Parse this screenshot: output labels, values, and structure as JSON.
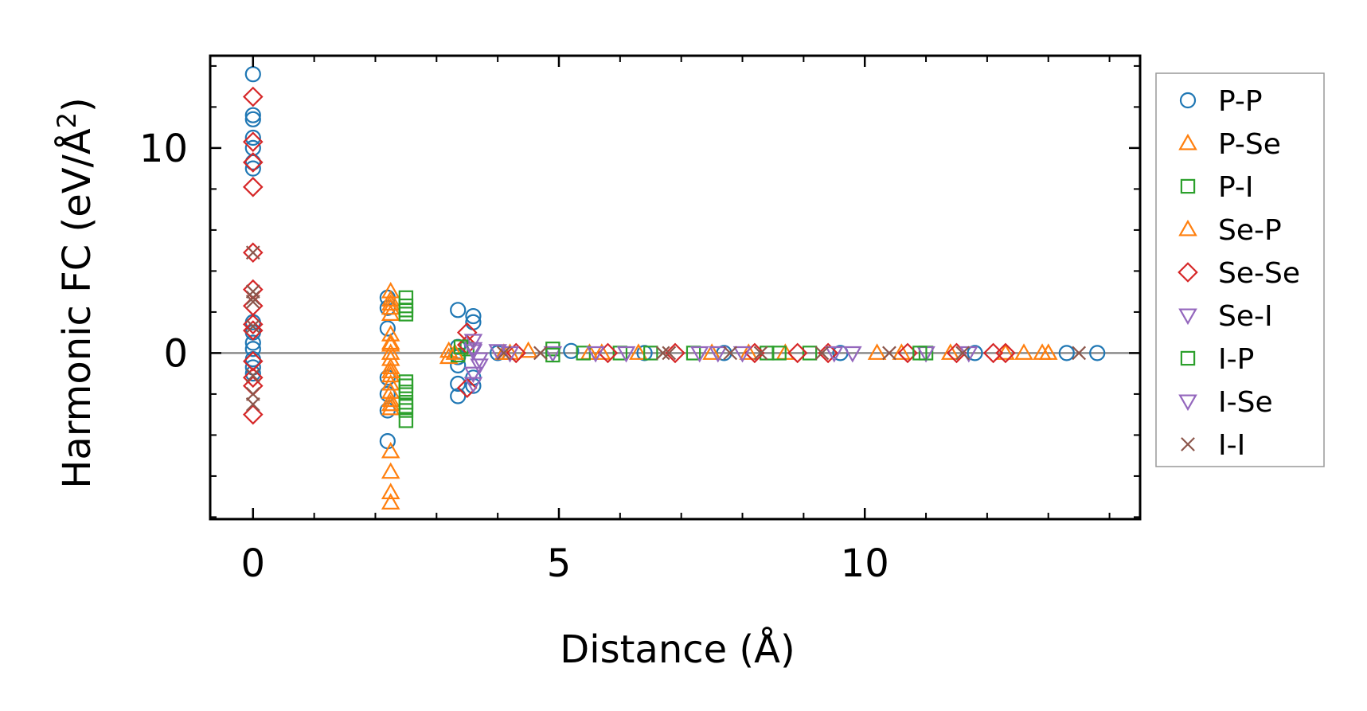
{
  "chart_data": {
    "type": "scatter",
    "xlabel": "Distance (Å)",
    "ylabel": "Harmonic FC (eV/Å",
    "ylabel_sup": "2",
    "ylabel_close": ")",
    "xlim": [
      -0.7,
      14.5
    ],
    "ylim": [
      -8.1,
      14.5
    ],
    "x_ticks": [
      0,
      5,
      10
    ],
    "x_tick_labels": [
      "0",
      "5",
      "10"
    ],
    "y_ticks": [
      0,
      10
    ],
    "y_tick_labels": [
      "0",
      "10"
    ],
    "x_minor_step": 1,
    "y_minor_step": 2,
    "grid": false,
    "reference_line_y": 0,
    "legend_position": "outside-right",
    "series": [
      {
        "name": "P-P",
        "marker": "circle",
        "color": "#1f77b4",
        "points": [
          [
            0,
            13.6
          ],
          [
            0,
            11.6
          ],
          [
            0,
            11.4
          ],
          [
            0,
            10.5
          ],
          [
            0,
            10.0
          ],
          [
            0,
            9.3
          ],
          [
            0,
            9.0
          ],
          [
            0,
            1.5
          ],
          [
            0,
            1.0
          ],
          [
            0,
            0.5
          ],
          [
            0,
            0.2
          ],
          [
            0,
            -0.3
          ],
          [
            0,
            -0.7
          ],
          [
            0,
            -1.0
          ],
          [
            2.2,
            2.7
          ],
          [
            2.2,
            2.2
          ],
          [
            2.2,
            1.2
          ],
          [
            2.2,
            -1.2
          ],
          [
            2.2,
            -2.0
          ],
          [
            2.2,
            -2.8
          ],
          [
            2.2,
            -4.3
          ],
          [
            3.35,
            2.1
          ],
          [
            3.6,
            1.8
          ],
          [
            3.6,
            1.5
          ],
          [
            3.35,
            0.3
          ],
          [
            3.35,
            -0.2
          ],
          [
            3.35,
            -0.6
          ],
          [
            3.35,
            -1.5
          ],
          [
            3.35,
            -2.1
          ],
          [
            3.6,
            -1.2
          ],
          [
            3.6,
            -1.6
          ],
          [
            4.0,
            0.0
          ],
          [
            5.2,
            0.1
          ],
          [
            6.4,
            0.0
          ],
          [
            7.7,
            0.0
          ],
          [
            9.6,
            0.0
          ],
          [
            11.8,
            0.0
          ],
          [
            13.3,
            0.0
          ],
          [
            13.8,
            0.0
          ]
        ]
      },
      {
        "name": "P-Se",
        "marker": "triangle-up",
        "color": "#ff7f0e",
        "points": [
          [
            2.25,
            3.0
          ],
          [
            2.25,
            2.6
          ],
          [
            2.25,
            2.2
          ],
          [
            2.25,
            1.9
          ],
          [
            2.25,
            0.9
          ],
          [
            2.25,
            0.5
          ],
          [
            2.25,
            0.0
          ],
          [
            2.25,
            -0.3
          ],
          [
            2.25,
            -0.7
          ],
          [
            2.25,
            -1.1
          ],
          [
            2.25,
            -1.5
          ],
          [
            2.25,
            -1.9
          ],
          [
            2.25,
            -2.3
          ],
          [
            2.25,
            -2.7
          ],
          [
            2.25,
            -4.8
          ],
          [
            2.25,
            -5.8
          ],
          [
            2.25,
            -6.8
          ],
          [
            2.25,
            -7.3
          ],
          [
            3.2,
            0.1
          ],
          [
            3.2,
            -0.2
          ],
          [
            4.2,
            0.0
          ],
          [
            4.5,
            0.1
          ],
          [
            5.5,
            0.0
          ],
          [
            6.3,
            0.0
          ],
          [
            7.5,
            0.0
          ],
          [
            8.7,
            0.0
          ],
          [
            10.2,
            0.0
          ],
          [
            11.4,
            0.0
          ],
          [
            12.3,
            0.0
          ],
          [
            12.6,
            0.0
          ],
          [
            13.0,
            0.0
          ]
        ]
      },
      {
        "name": "P-I",
        "marker": "square",
        "color": "#2ca02c",
        "points": [
          [
            2.5,
            2.7
          ],
          [
            2.5,
            2.3
          ],
          [
            2.5,
            1.9
          ],
          [
            2.5,
            -1.4
          ],
          [
            2.5,
            -1.9
          ],
          [
            2.5,
            -2.4
          ],
          [
            2.5,
            -2.8
          ],
          [
            2.5,
            -3.3
          ],
          [
            3.35,
            -0.1
          ],
          [
            3.5,
            0.2
          ],
          [
            4.9,
            0.2
          ],
          [
            5.4,
            0.0
          ],
          [
            6.0,
            0.0
          ],
          [
            7.2,
            0.0
          ],
          [
            8.4,
            0.0
          ],
          [
            9.1,
            0.0
          ],
          [
            11.0,
            0.0
          ]
        ]
      },
      {
        "name": "Se-P",
        "marker": "triangle-up",
        "color": "#ff7f0e",
        "points": [
          [
            2.25,
            2.4
          ],
          [
            2.25,
            0.4
          ],
          [
            2.25,
            -0.9
          ],
          [
            2.25,
            -2.5
          ],
          [
            3.3,
            0.0
          ],
          [
            4.1,
            0.0
          ],
          [
            5.7,
            0.0
          ],
          [
            8.1,
            0.0
          ],
          [
            10.6,
            0.0
          ],
          [
            12.9,
            0.0
          ]
        ]
      },
      {
        "name": "Se-Se",
        "marker": "diamond",
        "color": "#d62728",
        "points": [
          [
            0,
            12.5
          ],
          [
            0,
            10.3
          ],
          [
            0,
            9.3
          ],
          [
            0,
            8.1
          ],
          [
            0,
            4.9
          ],
          [
            0,
            3.1
          ],
          [
            0,
            2.3
          ],
          [
            0,
            1.4
          ],
          [
            0,
            1.1
          ],
          [
            0,
            -0.4
          ],
          [
            0,
            -1.2
          ],
          [
            0,
            -1.6
          ],
          [
            0,
            -3.0
          ],
          [
            3.5,
            1.0
          ],
          [
            3.5,
            0.4
          ],
          [
            3.5,
            -1.7
          ],
          [
            4.3,
            0.0
          ],
          [
            5.8,
            0.0
          ],
          [
            6.9,
            0.0
          ],
          [
            8.2,
            0.0
          ],
          [
            8.9,
            0.0
          ],
          [
            9.4,
            0.0
          ],
          [
            10.7,
            0.0
          ],
          [
            11.5,
            0.0
          ],
          [
            12.1,
            0.0
          ],
          [
            12.3,
            0.0
          ]
        ]
      },
      {
        "name": "Se-I",
        "marker": "triangle-down",
        "color": "#9467bd",
        "points": [
          [
            3.6,
            0.6
          ],
          [
            3.6,
            0.2
          ],
          [
            3.7,
            -0.3
          ],
          [
            3.6,
            -1.0
          ],
          [
            3.6,
            -1.5
          ],
          [
            4.0,
            0.1
          ],
          [
            4.9,
            0.0
          ],
          [
            6.1,
            0.0
          ],
          [
            7.3,
            0.0
          ],
          [
            8.0,
            0.0
          ],
          [
            9.8,
            0.0
          ],
          [
            11.0,
            0.0
          ]
        ]
      },
      {
        "name": "I-P",
        "marker": "square",
        "color": "#2ca02c",
        "points": [
          [
            2.5,
            2.1
          ],
          [
            2.5,
            -1.6
          ],
          [
            2.5,
            -2.6
          ],
          [
            3.4,
            0.3
          ],
          [
            4.9,
            -0.1
          ],
          [
            6.5,
            0.0
          ],
          [
            8.6,
            0.0
          ],
          [
            10.9,
            0.0
          ]
        ]
      },
      {
        "name": "I-Se",
        "marker": "triangle-down",
        "color": "#9467bd",
        "points": [
          [
            3.6,
            0.1
          ],
          [
            3.7,
            -0.6
          ],
          [
            4.2,
            0.0
          ],
          [
            5.6,
            0.0
          ],
          [
            7.6,
            0.0
          ],
          [
            9.5,
            0.0
          ],
          [
            11.7,
            0.0
          ]
        ]
      },
      {
        "name": "I-I",
        "marker": "x",
        "color": "#8c564b",
        "points": [
          [
            0,
            4.9
          ],
          [
            0,
            3.0
          ],
          [
            0,
            2.7
          ],
          [
            0,
            2.5
          ],
          [
            0,
            1.3
          ],
          [
            0,
            -1.1
          ],
          [
            0,
            -2.0
          ],
          [
            0,
            -2.5
          ],
          [
            4.1,
            0.0
          ],
          [
            4.7,
            0.0
          ],
          [
            6.7,
            0.0
          ],
          [
            6.8,
            0.0
          ],
          [
            7.8,
            0.0
          ],
          [
            8.3,
            0.0
          ],
          [
            9.3,
            0.0
          ],
          [
            10.4,
            0.0
          ],
          [
            11.6,
            0.0
          ],
          [
            13.5,
            0.0
          ]
        ]
      }
    ]
  }
}
